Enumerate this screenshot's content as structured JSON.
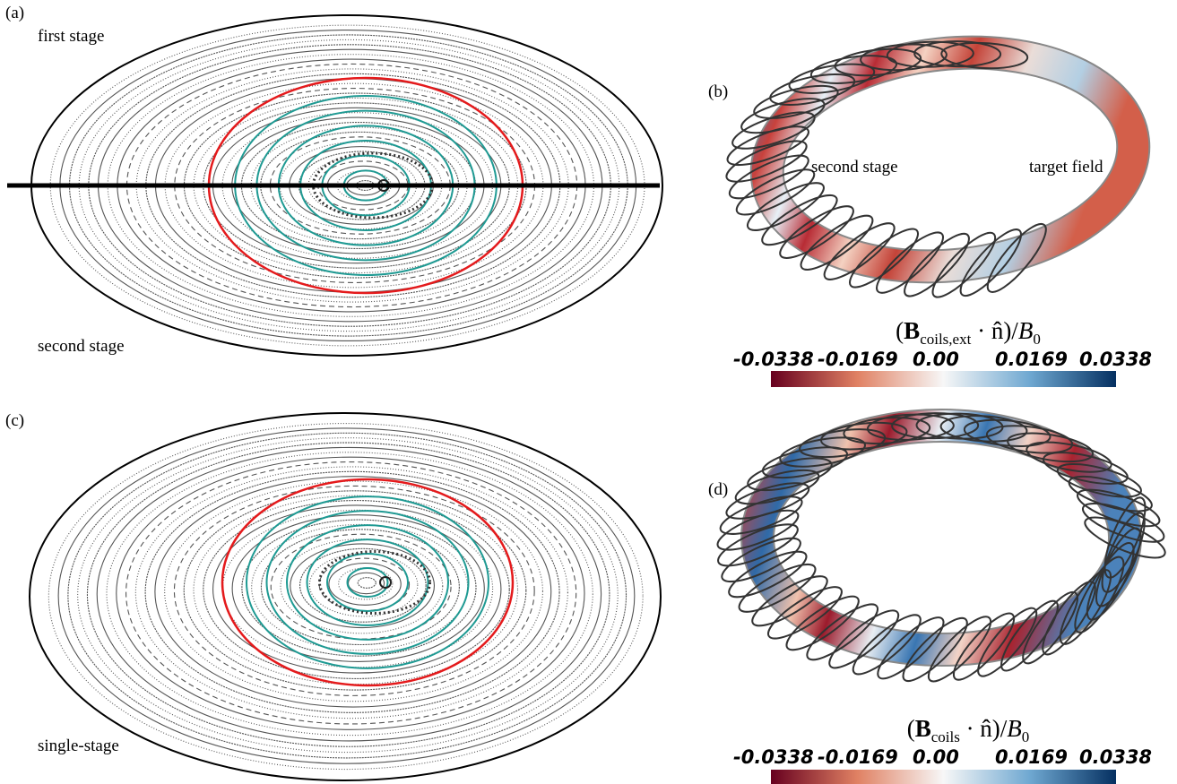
{
  "panels": [
    {
      "label": "(a)",
      "annotations": [
        "first stage",
        "second stage"
      ]
    },
    {
      "label": "(b)",
      "annotations": [
        "second stage",
        "target field"
      ],
      "colorbar": {
        "title_parts": [
          "(",
          "B",
          "coils,ext",
          " · n̂)/",
          "B",
          "0"
        ],
        "ticks": [
          "-0.0338",
          "-0.0169",
          "0.00",
          "0.0169",
          "0.0338"
        ]
      }
    },
    {
      "label": "(c)",
      "annotations": [
        "single-stage"
      ]
    },
    {
      "label": "(d)",
      "colorbar": {
        "title_parts": [
          "(",
          "B",
          "coils",
          " · n̂)/",
          "B",
          "0"
        ],
        "ticks": [
          "-0.0338",
          "-0.0169",
          "0.00",
          "0.0169",
          "0.0338"
        ]
      }
    }
  ]
}
